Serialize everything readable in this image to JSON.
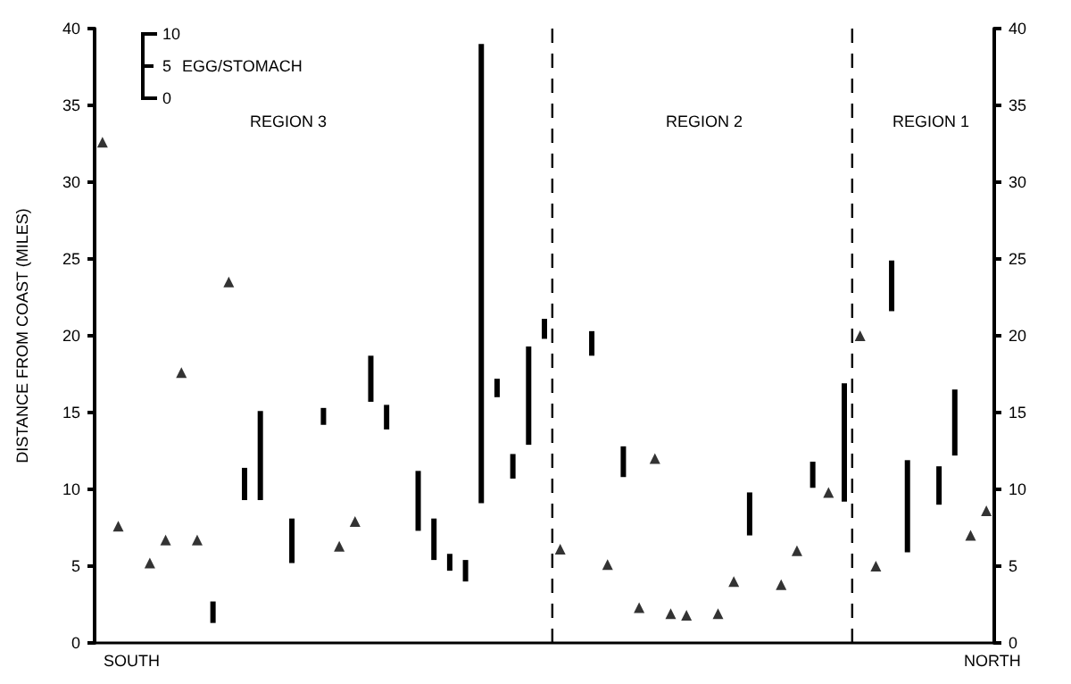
{
  "chart_data": {
    "type": "bar",
    "ylabel": "DISTANCE FROM COAST (MILES)",
    "categories": [
      null,
      null,
      null,
      null,
      null,
      null,
      null,
      null,
      null,
      null,
      null,
      null,
      null,
      null,
      null,
      null,
      null,
      null,
      null,
      null,
      null,
      null,
      null,
      null,
      null,
      null,
      null,
      null,
      null,
      null,
      null,
      null,
      null,
      null,
      null,
      null,
      null,
      null,
      null,
      null,
      null,
      null,
      null,
      null,
      null,
      null,
      null,
      null,
      null,
      null,
      null,
      null,
      null,
      null,
      null,
      null,
      null
    ],
    "series": [
      {
        "color": "#000000",
        "base": [
          null,
          null,
          null,
          null,
          null,
          null,
          null,
          1.3,
          null,
          9.3,
          9.3,
          null,
          5.2,
          null,
          14.2,
          null,
          null,
          15.7,
          13.9,
          null,
          7.3,
          5.4,
          4.7,
          4.0,
          9.1,
          16.0,
          10.7,
          12.9,
          19.8,
          null,
          null,
          18.7,
          null,
          10.8,
          null,
          null,
          null,
          null,
          null,
          null,
          null,
          7.0,
          null,
          null,
          null,
          10.1,
          null,
          9.2,
          null,
          null,
          21.6,
          5.9,
          null,
          9.0,
          12.2,
          null,
          null
        ],
        "values": [
          null,
          null,
          null,
          null,
          null,
          null,
          null,
          1.4,
          null,
          2.1,
          5.8,
          null,
          2.9,
          null,
          1.1,
          null,
          null,
          3.0,
          1.6,
          null,
          3.9,
          2.7,
          1.1,
          1.4,
          29.9,
          1.2,
          1.6,
          6.4,
          1.3,
          null,
          null,
          1.6,
          null,
          2.0,
          null,
          null,
          null,
          null,
          null,
          null,
          null,
          2.8,
          null,
          null,
          null,
          1.7,
          null,
          7.7,
          null,
          null,
          3.3,
          6.0,
          null,
          2.5,
          4.3,
          null,
          null
        ]
      },
      {
        "type": "scatter",
        "color": "#000000",
        "marker": "triangle",
        "values": [
          32.6,
          7.6,
          null,
          5.2,
          6.7,
          17.6,
          6.7,
          null,
          23.5,
          null,
          null,
          null,
          null,
          null,
          null,
          6.3,
          7.9,
          null,
          null,
          null,
          null,
          null,
          null,
          null,
          null,
          null,
          null,
          null,
          null,
          6.1,
          null,
          null,
          5.1,
          null,
          2.3,
          12.0,
          1.9,
          1.8,
          null,
          1.9,
          4.0,
          null,
          null,
          3.8,
          6.0,
          null,
          9.8,
          null,
          20.0,
          5.0,
          null,
          null,
          null,
          null,
          null,
          7.0,
          8.6
        ]
      }
    ],
    "ylim": [
      0,
      40
    ],
    "yticks": [
      0,
      5,
      10,
      15,
      20,
      25,
      30,
      35,
      40
    ],
    "y2lim": [
      0,
      40
    ],
    "y2ticks": [
      0,
      5,
      10,
      15,
      20,
      25,
      30,
      35,
      40
    ],
    "grid": false,
    "annotations": [
      "REGION 3",
      "REGION 2",
      "REGION 1",
      "SOUTH",
      "NORTH",
      "10",
      "5",
      "0",
      "EGG/STOMACH"
    ]
  }
}
